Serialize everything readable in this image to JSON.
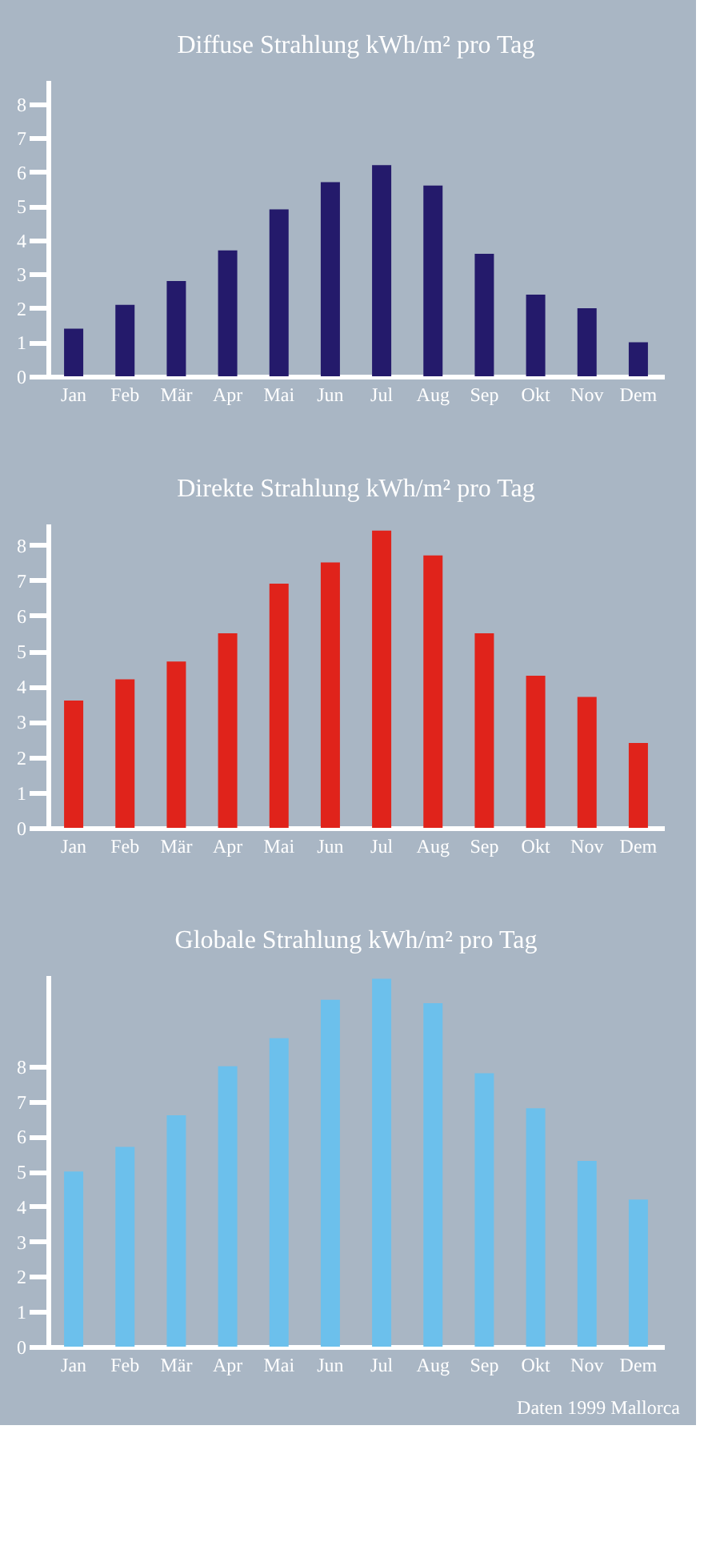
{
  "chart_data": [
    {
      "type": "bar",
      "title": "Diffuse Strahlung kWh/m² pro Tag",
      "categories": [
        "Jan",
        "Feb",
        "Mär",
        "Apr",
        "Mai",
        "Jun",
        "Jul",
        "Aug",
        "Sep",
        "Okt",
        "Nov",
        "Dem"
      ],
      "values": [
        1.4,
        2.1,
        2.8,
        3.7,
        4.9,
        5.7,
        6.2,
        5.6,
        3.6,
        2.4,
        2.0,
        1.0
      ],
      "color": "#241a6b",
      "ylim": [
        0,
        8.7
      ],
      "yticks": [
        0,
        1,
        2,
        3,
        4,
        5,
        6,
        7,
        8
      ],
      "grid": false
    },
    {
      "type": "bar",
      "title": "Direkte Strahlung kWh/m² pro Tag",
      "categories": [
        "Jan",
        "Feb",
        "Mär",
        "Apr",
        "Mai",
        "Jun",
        "Jul",
        "Aug",
        "Sep",
        "Okt",
        "Nov",
        "Dem"
      ],
      "values": [
        3.6,
        4.2,
        4.7,
        5.5,
        6.9,
        7.5,
        8.4,
        7.7,
        5.5,
        4.3,
        3.7,
        2.4
      ],
      "color": "#e0231b",
      "ylim": [
        0,
        8.6
      ],
      "yticks": [
        0,
        1,
        2,
        3,
        4,
        5,
        6,
        7,
        8
      ],
      "grid": false
    },
    {
      "type": "bar",
      "title": "Globale Strahlung kWh/m² pro Tag",
      "categories": [
        "Jan",
        "Feb",
        "Mär",
        "Apr",
        "Mai",
        "Jun",
        "Jul",
        "Aug",
        "Sep",
        "Okt",
        "Nov",
        "Dem"
      ],
      "values": [
        5.0,
        5.7,
        6.6,
        8.0,
        8.8,
        9.9,
        10.5,
        9.8,
        7.8,
        6.8,
        5.3,
        4.2
      ],
      "color": "#6cc0ec",
      "ylim": [
        0,
        10.6
      ],
      "yticks": [
        0,
        1,
        2,
        3,
        4,
        5,
        6,
        7,
        8
      ],
      "grid": false,
      "annotations": [
        "Daten 1999 Mallorca"
      ]
    }
  ]
}
